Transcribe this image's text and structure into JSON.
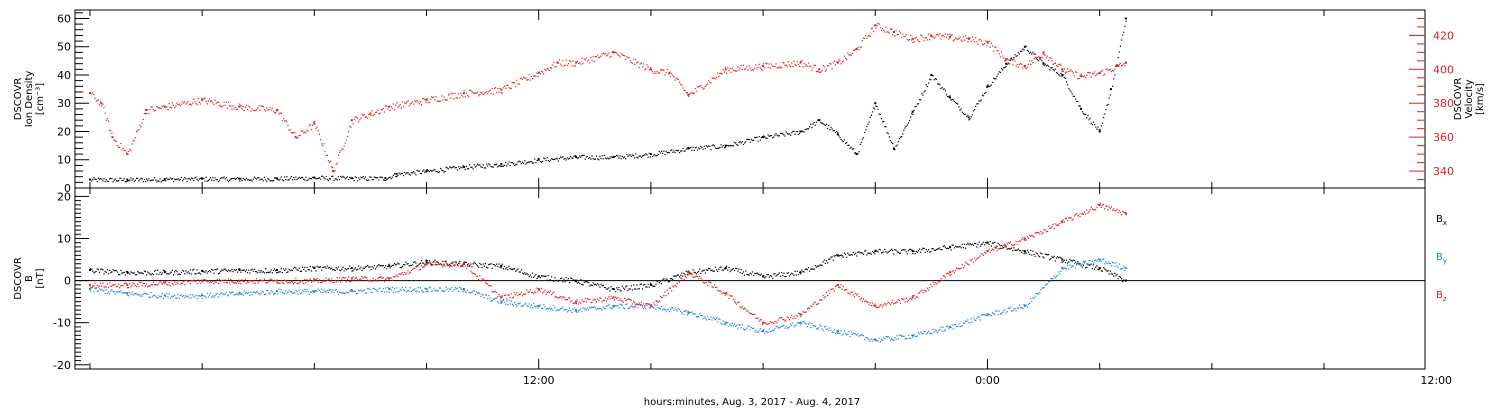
{
  "chart_data": [
    {
      "type": "scatter",
      "panel": "top",
      "ylabel_left": [
        "DSCOVR",
        "Ion Density",
        "[cm⁻³]"
      ],
      "ylabel_right": [
        "DSCOVR",
        "Velocity",
        "[km/s]"
      ],
      "ylim_left": [
        0,
        63
      ],
      "ylim_right": [
        330,
        435
      ],
      "yticks_left": [
        "0",
        "10",
        "20",
        "30",
        "40",
        "50",
        "60"
      ],
      "yticks_right": [
        "340",
        "360",
        "380",
        "400",
        "420"
      ],
      "x_unit": "hours since Aug. 3, 2017 00:00",
      "series": [
        {
          "axis": "left",
          "color": "#000000",
          "x": [
            0,
            1,
            2,
            3,
            4,
            5,
            6,
            7,
            7.9,
            8.2,
            9,
            10,
            11,
            12,
            13,
            14,
            15,
            16,
            17,
            18,
            19,
            19.5,
            20,
            20.5,
            21,
            21.5,
            22,
            22.5,
            23,
            23.5,
            24,
            24.5,
            25,
            25.5,
            26,
            26.5,
            27,
            27.3,
            27.7
          ],
          "y": [
            3,
            3,
            3.2,
            3.3,
            3.3,
            3.4,
            3.7,
            3.5,
            3.5,
            5,
            6,
            7.5,
            8.5,
            10,
            11,
            11,
            12,
            14,
            15,
            18,
            20,
            24,
            19,
            12,
            30,
            14,
            27,
            40,
            32,
            25,
            36,
            44,
            50,
            44,
            40,
            28,
            20,
            35,
            60
          ]
        },
        {
          "axis": "right",
          "color": "#e0201a",
          "x": [
            0,
            0.3,
            0.6,
            1,
            1.5,
            2,
            3,
            4,
            5,
            5.5,
            6,
            6.5,
            7,
            7.5,
            8,
            9,
            10,
            11,
            12,
            12.5,
            13,
            14,
            15,
            15.5,
            16,
            17,
            18,
            19,
            19.5,
            20,
            20.5,
            21,
            21.5,
            22,
            22.5,
            23,
            23.5,
            24,
            24.5,
            25,
            25.5,
            26,
            26.5,
            27,
            27.5,
            27.7
          ],
          "y": [
            386,
            380,
            360,
            350,
            376,
            378,
            382,
            378,
            376,
            360,
            368,
            340,
            370,
            374,
            378,
            382,
            386,
            388,
            398,
            404,
            404,
            410,
            400,
            398,
            385,
            400,
            402,
            404,
            400,
            404,
            412,
            426,
            422,
            418,
            420,
            419,
            418,
            416,
            406,
            402,
            410,
            400,
            396,
            398,
            402,
            404
          ]
        }
      ]
    },
    {
      "type": "scatter",
      "panel": "bottom",
      "ylabel_left": [
        "DSCOVR",
        "B",
        "[nT]"
      ],
      "ylim": [
        -21,
        22
      ],
      "yticks": [
        "-20",
        "-10",
        "0",
        "10",
        "20"
      ],
      "x_unit": "hours since Aug. 3, 2017 00:00",
      "series": [
        {
          "name": "B",
          "subscript": "x",
          "color": "#000000",
          "x": [
            0,
            1,
            2,
            3,
            4,
            5,
            6,
            7,
            8,
            9,
            10,
            11,
            12,
            13,
            14,
            15,
            16,
            17,
            18,
            19,
            20,
            21,
            22,
            23,
            24,
            25,
            26,
            27,
            27.7
          ],
          "y": [
            2.5,
            2,
            2,
            2.3,
            2.5,
            2.5,
            3,
            3,
            3.5,
            4.5,
            4,
            3.5,
            1,
            0,
            -2,
            -1,
            2,
            3,
            1,
            2,
            6,
            7,
            7,
            8,
            9,
            7,
            5,
            3,
            0
          ]
        },
        {
          "name": "B",
          "subscript": "y",
          "color": "#1a86d8",
          "x": [
            0,
            1,
            2,
            3,
            4,
            5,
            6,
            7,
            8,
            9,
            10,
            11,
            12,
            13,
            14,
            15,
            16,
            17,
            18,
            19,
            20,
            21,
            22,
            23,
            24,
            25,
            26,
            27,
            27.7
          ],
          "y": [
            -2,
            -3,
            -3.5,
            -3.5,
            -3,
            -2.5,
            -2.5,
            -2.5,
            -2,
            -2,
            -2,
            -5,
            -6,
            -7,
            -6,
            -6,
            -7.5,
            -10,
            -12,
            -10,
            -12,
            -14,
            -13,
            -11,
            -8,
            -6,
            3,
            5,
            3
          ]
        },
        {
          "name": "B",
          "subscript": "z",
          "color": "#e0201a",
          "x": [
            0,
            1,
            2,
            3,
            4,
            5,
            6,
            7,
            8,
            9,
            10,
            11,
            12,
            13,
            14,
            15,
            16,
            17,
            18,
            19,
            20,
            21,
            22,
            23,
            24,
            25,
            26,
            27,
            27.7
          ],
          "y": [
            -1,
            -1,
            -0.5,
            0,
            0,
            0,
            0,
            0.5,
            0.5,
            4,
            4,
            -4,
            -2,
            -5,
            -4,
            -6,
            2,
            -3,
            -10,
            -8,
            -1,
            -6,
            -4,
            2,
            7,
            10,
            14,
            18,
            16
          ]
        }
      ]
    }
  ],
  "axes": {
    "x_tick_labels": [
      {
        "hour": 12,
        "label": "12:00"
      },
      {
        "hour": 24,
        "label": "0:00"
      },
      {
        "hour": 36,
        "label": "12:00"
      }
    ],
    "xlabel": "hours:minutes, Aug.  3, 2017 - Aug.  4, 2017",
    "xlim_hours": [
      -0.4,
      35.7
    ]
  },
  "legend": [
    {
      "base": "B",
      "sub": "x",
      "color": "#000000"
    },
    {
      "base": "B",
      "sub": "y",
      "color": "#1a86d8"
    },
    {
      "base": "B",
      "sub": "z",
      "color": "#e0201a"
    }
  ]
}
